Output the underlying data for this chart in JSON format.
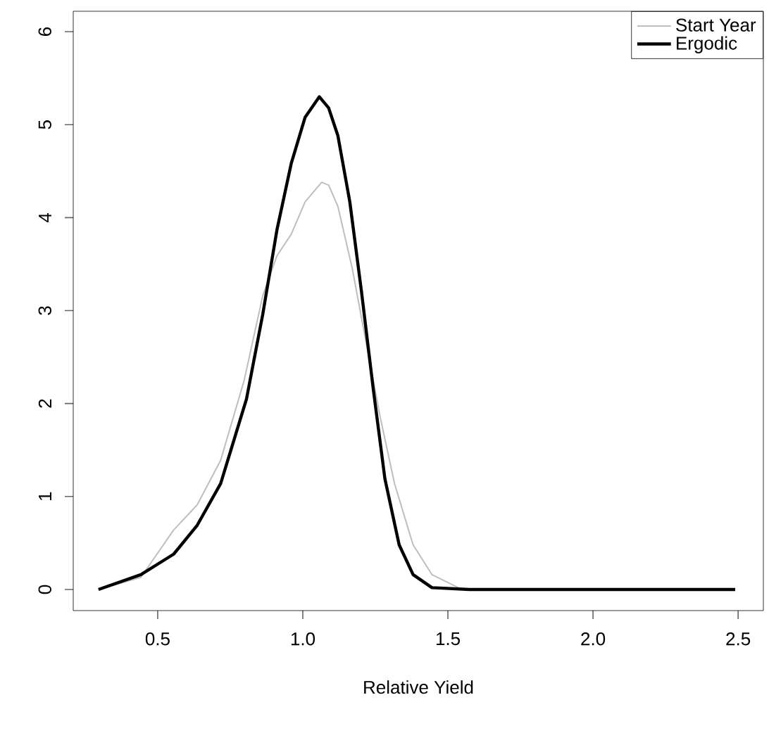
{
  "chart_data": {
    "type": "line",
    "xlabel": "Relative Yield",
    "xlim": [
      0.209,
      2.587
    ],
    "ylim": [
      -0.227,
      6.22
    ],
    "xticks": [
      {
        "value": 0.5,
        "label": "0.5"
      },
      {
        "value": 1.0,
        "label": "1.0"
      },
      {
        "value": 1.5,
        "label": "1.5"
      },
      {
        "value": 2.0,
        "label": "2.0"
      },
      {
        "value": 2.5,
        "label": "2.5"
      }
    ],
    "yticks": [
      0,
      1,
      2,
      3,
      4,
      5,
      6
    ],
    "legend": "top right",
    "grid": false,
    "marker": "none",
    "line_style": "solid",
    "series": [
      {
        "name": "Start Year",
        "color": "#bebebe",
        "x": [
          0.296,
          0.442,
          0.555,
          0.636,
          0.717,
          0.798,
          0.862,
          0.911,
          0.96,
          1.008,
          1.065,
          1.089,
          1.121,
          1.17,
          1.218,
          1.267,
          1.316,
          1.38,
          1.445,
          1.542,
          1.607,
          2.0,
          2.49
        ],
        "values": [
          0,
          0.13,
          0.64,
          0.91,
          1.39,
          2.25,
          3.16,
          3.59,
          3.82,
          4.17,
          4.38,
          4.35,
          4.12,
          3.46,
          2.66,
          1.85,
          1.14,
          0.48,
          0.16,
          0.01,
          0,
          0,
          0
        ]
      },
      {
        "name": "Ergodic",
        "color": "#000000",
        "x": [
          0.296,
          0.442,
          0.555,
          0.636,
          0.717,
          0.806,
          0.862,
          0.911,
          0.96,
          1.008,
          1.057,
          1.089,
          1.121,
          1.162,
          1.202,
          1.243,
          1.283,
          1.332,
          1.38,
          1.445,
          1.574,
          2.0,
          2.49
        ],
        "values": [
          0,
          0.16,
          0.38,
          0.69,
          1.14,
          2.05,
          2.96,
          3.87,
          4.58,
          5.08,
          5.3,
          5.18,
          4.88,
          4.17,
          3.21,
          2.15,
          1.19,
          0.48,
          0.16,
          0.02,
          0,
          0,
          0
        ]
      }
    ]
  }
}
